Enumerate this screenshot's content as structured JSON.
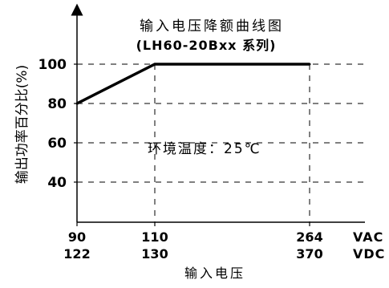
{
  "chart_data": {
    "type": "line",
    "title": "输入电压降额曲线图",
    "subtitle": "(LH60-20Bxx 系列)",
    "xlabel": "输入电压",
    "ylabel": "输出功率百分比(%)",
    "annotation": "环境温度：25℃",
    "x_units": [
      "VAC",
      "VDC"
    ],
    "x": [
      90,
      110,
      264
    ],
    "x_dc": [
      122,
      130,
      370
    ],
    "ylim": [
      20,
      120
    ],
    "yticks": [
      "40",
      "60",
      "80",
      "100"
    ],
    "ytick_values": [
      40,
      60,
      80,
      100
    ],
    "series": [
      {
        "values": [
          80,
          100,
          100
        ]
      }
    ],
    "grid": "dashed",
    "line_color": "#000000"
  }
}
